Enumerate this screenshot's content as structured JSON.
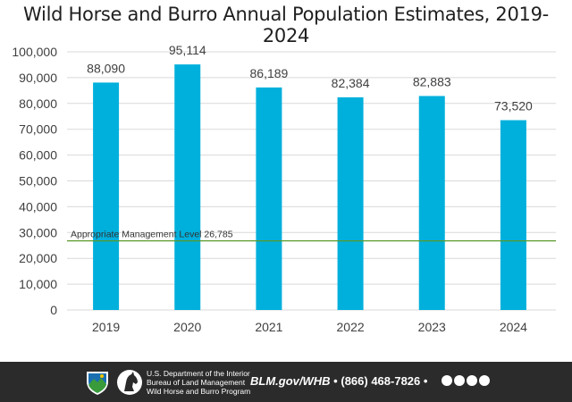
{
  "chart_data": {
    "type": "bar",
    "title": "Wild Horse and Burro Annual Population Estimates, 2019-2024",
    "categories": [
      "2019",
      "2020",
      "2021",
      "2022",
      "2023",
      "2024"
    ],
    "values": [
      88090,
      95114,
      86189,
      82384,
      82883,
      73520
    ],
    "value_labels": [
      "88,090",
      "95,114",
      "86,189",
      "82,384",
      "82,883",
      "73,520"
    ],
    "yticks": [
      0,
      10000,
      20000,
      30000,
      40000,
      50000,
      60000,
      70000,
      80000,
      90000,
      100000
    ],
    "ytick_labels": [
      "0",
      "10,000",
      "20,000",
      "30,000",
      "40,000",
      "50,000",
      "60,000",
      "70,000",
      "80,000",
      "90,000",
      "100,000"
    ],
    "ylim": [
      0,
      100000
    ],
    "grid": true,
    "bar_color": "#00b0dc",
    "reference_line": {
      "label": "Appropriate Management Level 26,785",
      "value": 26785,
      "color": "#5a9a2a"
    }
  },
  "footer": {
    "agency_line1": "U.S. Department of the Interior",
    "agency_line2": "Bureau of Land Management",
    "agency_line3": "Wild Horse and Burro Program",
    "site": "BLM.gov/WHB",
    "separator": "•",
    "phone": "(866) 468-7826",
    "background_color": "#2b2b2b",
    "icons": [
      "blm-logo-icon",
      "horse-head-icon",
      "facebook-icon",
      "twitter-icon",
      "flickr-icon",
      "youtube-icon"
    ]
  }
}
